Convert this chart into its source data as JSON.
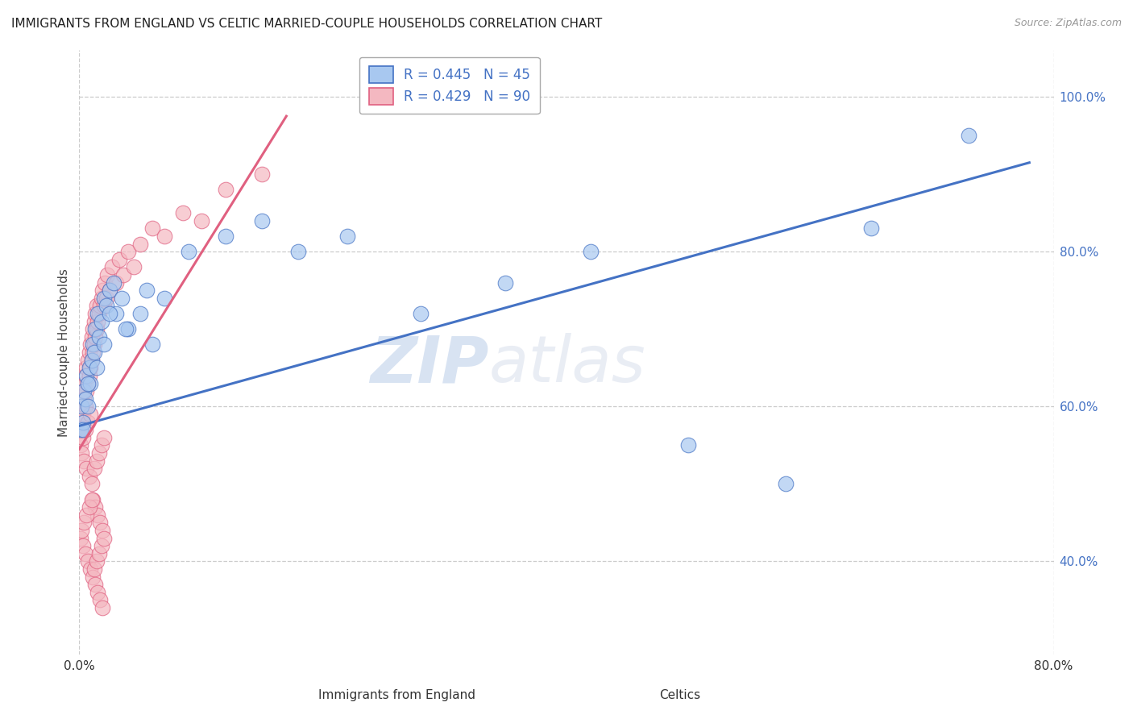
{
  "title": "IMMIGRANTS FROM ENGLAND VS CELTIC MARRIED-COUPLE HOUSEHOLDS CORRELATION CHART",
  "source": "Source: ZipAtlas.com",
  "ylabel": "Married-couple Households",
  "xaxis_label_england": "Immigrants from England",
  "xaxis_label_celtics": "Celtics",
  "xlim": [
    0.0,
    0.8
  ],
  "ylim": [
    0.28,
    1.06
  ],
  "y_ticks": [
    0.4,
    0.6,
    0.8,
    1.0
  ],
  "y_tick_labels": [
    "40.0%",
    "60.0%",
    "80.0%",
    "100.0%"
  ],
  "england_R": 0.445,
  "england_N": 45,
  "celtics_R": 0.429,
  "celtics_N": 90,
  "england_color": "#a8c8f0",
  "england_color_line": "#4472c4",
  "celtics_color": "#f4b8c1",
  "celtics_color_line": "#e06080",
  "england_scatter_x": [
    0.001,
    0.002,
    0.003,
    0.004,
    0.005,
    0.006,
    0.007,
    0.008,
    0.009,
    0.01,
    0.011,
    0.012,
    0.013,
    0.015,
    0.016,
    0.018,
    0.02,
    0.022,
    0.025,
    0.028,
    0.03,
    0.035,
    0.04,
    0.05,
    0.06,
    0.07,
    0.09,
    0.12,
    0.18,
    0.22,
    0.28,
    0.35,
    0.42,
    0.5,
    0.58,
    0.65,
    0.73,
    0.003,
    0.007,
    0.014,
    0.02,
    0.025,
    0.038,
    0.055,
    0.15
  ],
  "england_scatter_y": [
    0.57,
    0.6,
    0.58,
    0.62,
    0.61,
    0.64,
    0.6,
    0.65,
    0.63,
    0.66,
    0.68,
    0.67,
    0.7,
    0.72,
    0.69,
    0.71,
    0.74,
    0.73,
    0.75,
    0.76,
    0.72,
    0.74,
    0.7,
    0.72,
    0.68,
    0.74,
    0.8,
    0.82,
    0.8,
    0.82,
    0.72,
    0.76,
    0.8,
    0.55,
    0.5,
    0.83,
    0.95,
    0.57,
    0.63,
    0.65,
    0.68,
    0.72,
    0.7,
    0.75,
    0.84
  ],
  "celtics_scatter_x": [
    0.001,
    0.002,
    0.002,
    0.003,
    0.003,
    0.004,
    0.004,
    0.005,
    0.005,
    0.006,
    0.006,
    0.007,
    0.007,
    0.008,
    0.008,
    0.009,
    0.009,
    0.01,
    0.01,
    0.011,
    0.011,
    0.012,
    0.012,
    0.013,
    0.013,
    0.014,
    0.014,
    0.015,
    0.016,
    0.017,
    0.018,
    0.019,
    0.02,
    0.021,
    0.022,
    0.023,
    0.025,
    0.027,
    0.03,
    0.033,
    0.036,
    0.04,
    0.045,
    0.05,
    0.06,
    0.07,
    0.085,
    0.1,
    0.12,
    0.15,
    0.001,
    0.002,
    0.003,
    0.004,
    0.005,
    0.006,
    0.007,
    0.008,
    0.009,
    0.01,
    0.011,
    0.012,
    0.013,
    0.014,
    0.015,
    0.016,
    0.017,
    0.018,
    0.019,
    0.02,
    0.001,
    0.002,
    0.003,
    0.004,
    0.005,
    0.006,
    0.007,
    0.008,
    0.009,
    0.01,
    0.011,
    0.012,
    0.013,
    0.014,
    0.015,
    0.016,
    0.017,
    0.018,
    0.019,
    0.02
  ],
  "celtics_scatter_y": [
    0.57,
    0.58,
    0.6,
    0.59,
    0.62,
    0.61,
    0.63,
    0.6,
    0.64,
    0.62,
    0.65,
    0.63,
    0.66,
    0.64,
    0.67,
    0.65,
    0.68,
    0.66,
    0.69,
    0.67,
    0.7,
    0.68,
    0.71,
    0.69,
    0.72,
    0.7,
    0.73,
    0.71,
    0.72,
    0.73,
    0.74,
    0.75,
    0.73,
    0.76,
    0.74,
    0.77,
    0.75,
    0.78,
    0.76,
    0.79,
    0.77,
    0.8,
    0.78,
    0.81,
    0.83,
    0.82,
    0.85,
    0.84,
    0.88,
    0.9,
    0.55,
    0.54,
    0.56,
    0.53,
    0.57,
    0.52,
    0.58,
    0.51,
    0.59,
    0.5,
    0.48,
    0.52,
    0.47,
    0.53,
    0.46,
    0.54,
    0.45,
    0.55,
    0.44,
    0.56,
    0.43,
    0.44,
    0.42,
    0.45,
    0.41,
    0.46,
    0.4,
    0.47,
    0.39,
    0.48,
    0.38,
    0.39,
    0.37,
    0.4,
    0.36,
    0.41,
    0.35,
    0.42,
    0.34,
    0.43
  ],
  "watermark_zip": "ZIP",
  "watermark_atlas": "atlas",
  "background_color": "#ffffff",
  "grid_color": "#cccccc"
}
